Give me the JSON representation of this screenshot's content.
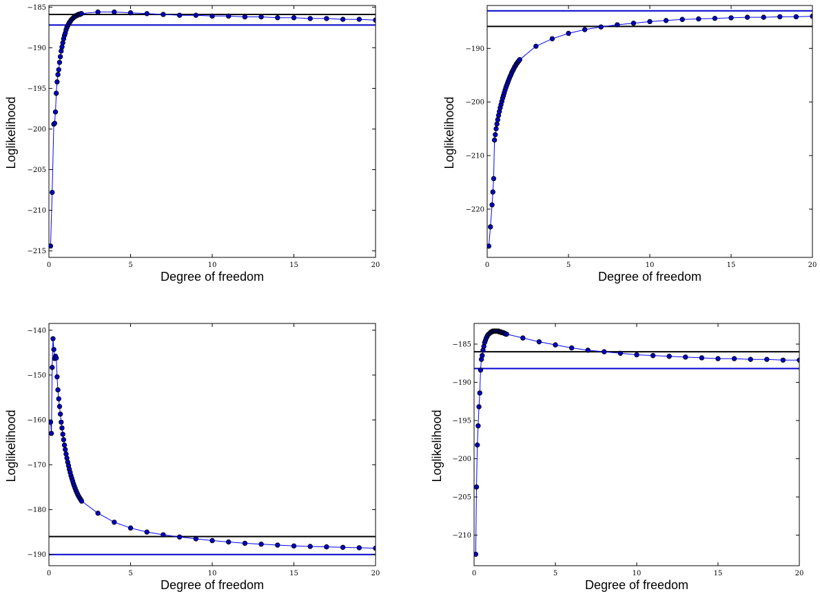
{
  "chart_data": [
    {
      "type": "line",
      "xlabel": "Degree of freedom",
      "ylabel": "Loglikelihood",
      "xlim": [
        0,
        20
      ],
      "ylim": [
        -215.8,
        -184.8
      ],
      "xticks": [
        0,
        5,
        10,
        15,
        20
      ],
      "yticks": [
        -215,
        -210,
        -205,
        -200,
        -195,
        -190,
        -185
      ],
      "hlines": [
        {
          "y": -185.9,
          "color": "#000000"
        },
        {
          "y": -187.2,
          "color": "#0000cc"
        }
      ],
      "series": [
        {
          "color": "#0000ff",
          "marker_fill": "#0000bf",
          "x": [
            0.1,
            0.2,
            0.3,
            0.35,
            0.4,
            0.45,
            0.5,
            0.55,
            0.6,
            0.65,
            0.7,
            0.75,
            0.8,
            0.85,
            0.9,
            0.95,
            1.0,
            1.05,
            1.1,
            1.15,
            1.2,
            1.25,
            1.3,
            1.35,
            1.4,
            1.45,
            1.5,
            1.55,
            1.6,
            1.65,
            1.7,
            1.75,
            1.8,
            1.85,
            1.9,
            1.95,
            2,
            3,
            4,
            5,
            6,
            7,
            8,
            9,
            10,
            11,
            12,
            13,
            14,
            15,
            16,
            17,
            18,
            19,
            20
          ],
          "y": [
            -214.4,
            -207.8,
            -199.4,
            -199.3,
            -197.9,
            -195.6,
            -194.2,
            -193.3,
            -192.7,
            -191.8,
            -191.1,
            -190.4,
            -189.9,
            -189.4,
            -188.9,
            -188.5,
            -188.2,
            -187.8,
            -187.5,
            -187.3,
            -187.1,
            -186.9,
            -186.8,
            -186.6,
            -186.5,
            -186.4,
            -186.3,
            -186.2,
            -186.1,
            -186.1,
            -186.0,
            -186.0,
            -185.9,
            -185.9,
            -185.9,
            -185.8,
            -185.8,
            -185.6,
            -185.6,
            -185.7,
            -185.8,
            -185.9,
            -186.0,
            -186.0,
            -186.1,
            -186.1,
            -186.2,
            -186.2,
            -186.3,
            -186.3,
            -186.4,
            -186.4,
            -186.5,
            -186.5,
            -186.6
          ]
        }
      ]
    },
    {
      "type": "line",
      "xlabel": "Degree of freedom",
      "ylabel": "Loglikelihood",
      "xlim": [
        0,
        20
      ],
      "ylim": [
        -229,
        -182
      ],
      "xticks": [
        0,
        5,
        10,
        15,
        20
      ],
      "yticks": [
        -220,
        -210,
        -200,
        -190
      ],
      "hlines": [
        {
          "y": -185.9,
          "color": "#000000"
        },
        {
          "y": -183.0,
          "color": "#0000cc"
        }
      ],
      "series": [
        {
          "color": "#0000ff",
          "marker_fill": "#0000bf",
          "x": [
            0.1,
            0.2,
            0.3,
            0.35,
            0.4,
            0.45,
            0.5,
            0.55,
            0.6,
            0.65,
            0.7,
            0.75,
            0.8,
            0.85,
            0.9,
            0.95,
            1.0,
            1.05,
            1.1,
            1.15,
            1.2,
            1.25,
            1.3,
            1.35,
            1.4,
            1.45,
            1.5,
            1.55,
            1.6,
            1.65,
            1.7,
            1.75,
            1.8,
            1.85,
            1.9,
            1.95,
            2,
            3,
            4,
            5,
            6,
            7,
            8,
            9,
            10,
            11,
            12,
            13,
            14,
            15,
            16,
            17,
            18,
            19,
            20
          ],
          "y": [
            -226.9,
            -223.3,
            -219.2,
            -216.8,
            -214.3,
            -207.1,
            -206.1,
            -205.0,
            -204.1,
            -203.3,
            -202.5,
            -201.8,
            -201.1,
            -200.5,
            -199.9,
            -199.3,
            -198.8,
            -198.3,
            -197.8,
            -197.3,
            -196.9,
            -196.5,
            -196.1,
            -195.7,
            -195.3,
            -195.0,
            -194.6,
            -194.3,
            -194.0,
            -193.7,
            -193.4,
            -193.2,
            -192.9,
            -192.7,
            -192.5,
            -192.3,
            -192.1,
            -189.6,
            -188.2,
            -187.2,
            -186.5,
            -186.0,
            -185.6,
            -185.3,
            -185.0,
            -184.8,
            -184.6,
            -184.5,
            -184.4,
            -184.3,
            -184.2,
            -184.2,
            -184.1,
            -184.1,
            -184.0
          ]
        }
      ]
    },
    {
      "type": "line",
      "xlabel": "Degree of freedom",
      "ylabel": "Loglikelihood",
      "xlim": [
        0,
        20
      ],
      "ylim": [
        -192.5,
        -138.5
      ],
      "xticks": [
        0,
        5,
        10,
        15,
        20
      ],
      "yticks": [
        -190,
        -180,
        -170,
        -160,
        -150,
        -140
      ],
      "hlines": [
        {
          "y": -186.0,
          "color": "#000000"
        },
        {
          "y": -190.0,
          "color": "#0000cc"
        }
      ],
      "series": [
        {
          "color": "#0000ff",
          "marker_fill": "#0000bf",
          "x": [
            0.1,
            0.15,
            0.2,
            0.25,
            0.3,
            0.35,
            0.4,
            0.45,
            0.5,
            0.55,
            0.6,
            0.65,
            0.7,
            0.75,
            0.8,
            0.85,
            0.9,
            0.95,
            1.0,
            1.05,
            1.1,
            1.15,
            1.2,
            1.25,
            1.3,
            1.35,
            1.4,
            1.45,
            1.5,
            1.55,
            1.6,
            1.65,
            1.7,
            1.75,
            1.8,
            1.85,
            1.9,
            1.95,
            2,
            3,
            4,
            5,
            6,
            7,
            8,
            9,
            10,
            11,
            12,
            13,
            14,
            15,
            16,
            17,
            18,
            19,
            20
          ],
          "y": [
            -160.5,
            -163.0,
            -148.3,
            -141.9,
            -144.3,
            -146.3,
            -145.8,
            -146.2,
            -150.4,
            -153.3,
            -155.3,
            -157.0,
            -158.7,
            -160.5,
            -161.8,
            -163.2,
            -164.4,
            -165.6,
            -166.6,
            -167.6,
            -168.5,
            -169.4,
            -170.2,
            -171.0,
            -171.7,
            -172.4,
            -173.0,
            -173.6,
            -174.2,
            -174.7,
            -175.2,
            -175.7,
            -176.1,
            -176.5,
            -176.9,
            -177.2,
            -177.5,
            -177.8,
            -178.1,
            -180.8,
            -182.8,
            -184.1,
            -185.0,
            -185.6,
            -186.1,
            -186.5,
            -186.9,
            -187.2,
            -187.5,
            -187.7,
            -187.9,
            -188.1,
            -188.2,
            -188.3,
            -188.4,
            -188.5,
            -188.6
          ]
        }
      ]
    },
    {
      "type": "line",
      "xlabel": "Degree of freedom",
      "ylabel": "Loglikelihood",
      "xlim": [
        0,
        20
      ],
      "ylim": [
        -214.0,
        -182.3
      ],
      "xticks": [
        0,
        5,
        10,
        15,
        20
      ],
      "yticks": [
        -210,
        -205,
        -200,
        -195,
        -190,
        -185
      ],
      "hlines": [
        {
          "y": -186.0,
          "color": "#000000"
        },
        {
          "y": -188.2,
          "color": "#0000cc"
        }
      ],
      "series": [
        {
          "color": "#0000ff",
          "marker_fill": "#0000bf",
          "x": [
            0.1,
            0.15,
            0.2,
            0.25,
            0.3,
            0.35,
            0.4,
            0.45,
            0.5,
            0.55,
            0.6,
            0.65,
            0.7,
            0.75,
            0.8,
            0.85,
            0.9,
            0.95,
            1.0,
            1.05,
            1.1,
            1.15,
            1.2,
            1.25,
            1.3,
            1.35,
            1.4,
            1.45,
            1.5,
            1.55,
            1.6,
            1.65,
            1.7,
            1.75,
            1.8,
            1.85,
            1.9,
            1.95,
            2,
            3,
            4,
            5,
            6,
            7,
            8,
            9,
            10,
            11,
            12,
            13,
            14,
            15,
            16,
            17,
            18,
            19,
            20
          ],
          "y": [
            -212.5,
            -203.7,
            -198.2,
            -195.7,
            -193.2,
            -191.4,
            -188.4,
            -187.0,
            -186.5,
            -185.8,
            -185.3,
            -184.8,
            -184.5,
            -184.2,
            -184.0,
            -183.8,
            -183.7,
            -183.6,
            -183.5,
            -183.4,
            -183.4,
            -183.3,
            -183.3,
            -183.3,
            -183.3,
            -183.3,
            -183.3,
            -183.3,
            -183.3,
            -183.4,
            -183.4,
            -183.4,
            -183.5,
            -183.5,
            -183.5,
            -183.6,
            -183.6,
            -183.7,
            -183.7,
            -184.2,
            -184.7,
            -185.1,
            -185.5,
            -185.8,
            -186.0,
            -186.2,
            -186.4,
            -186.5,
            -186.6,
            -186.7,
            -186.8,
            -186.9,
            -186.9,
            -187.0,
            -187.0,
            -187.1,
            -187.1
          ]
        }
      ]
    }
  ]
}
